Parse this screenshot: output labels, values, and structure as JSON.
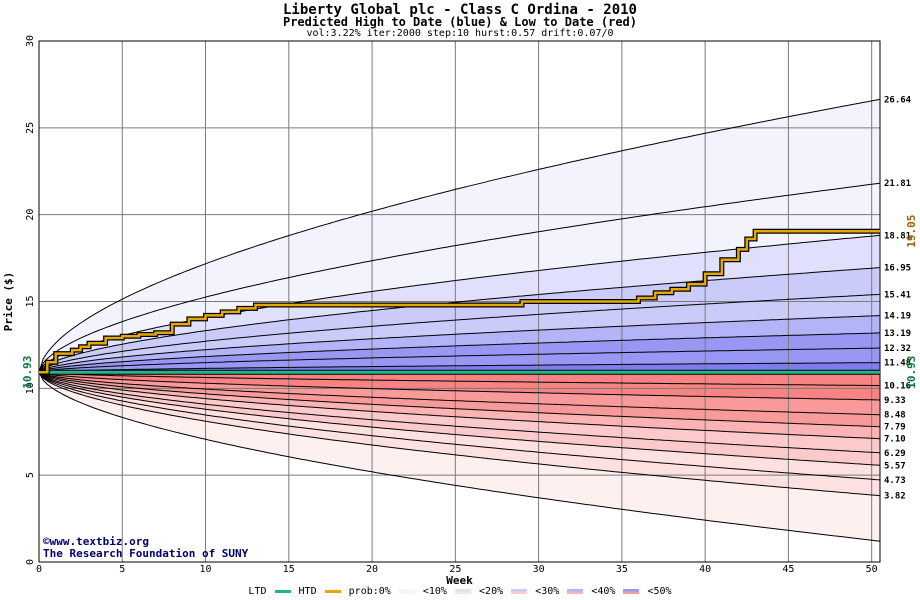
{
  "header": {
    "title": "Liberty Global plc - Class C Ordina - 2010",
    "subtitle": "Predicted High to Date (blue) &  Low to Date (red)",
    "params": "vol:3.22% iter:2000 step:10 hurst:0.57 drift:0.07/0"
  },
  "credits": {
    "line1": "©www.textbiz.org",
    "line2": "The Research Foundation of SUNY"
  },
  "legend": {
    "ltd": "LTD",
    "htd": "HTD",
    "prob": "prob:0%",
    "bands": [
      "<10%",
      "<20%",
      "<30%",
      "<40%",
      "<50%"
    ]
  },
  "colors": {
    "ltd_line": "#21b58c",
    "htd_line": "#e6a800",
    "htd_label": "#a06000",
    "ltd_label": "#0a7a3a",
    "blue_bands": [
      "#f3f3fe",
      "#e0e0fc",
      "#cbcbfa",
      "#b3b3f8",
      "#9898f4",
      "#7d7df0"
    ],
    "red_bands": [
      "#fff0f0",
      "#fde0e0",
      "#fccaca",
      "#fbb3b3",
      "#f99a9a",
      "#f78383"
    ]
  },
  "chart_data": {
    "type": "area",
    "xlabel": "Week",
    "ylabel": "Price ($)",
    "xlim": [
      0,
      50.5
    ],
    "ylim": [
      0,
      30
    ],
    "xticks": [
      0,
      5,
      10,
      15,
      20,
      25,
      30,
      35,
      40,
      45,
      50
    ],
    "yticks": [
      0,
      5,
      10,
      15,
      20,
      25,
      30
    ],
    "grid": true,
    "start_price": 10.93,
    "start_label": "10.93",
    "end_price_label": "10.93",
    "htd_end_label": "19.05",
    "upper_quantiles": [
      {
        "value": 26.64,
        "label": "26.64",
        "peak": 30
      },
      {
        "value": 21.81,
        "label": "21.81"
      },
      {
        "value": 18.81,
        "label": "18.81"
      },
      {
        "value": 16.95,
        "label": "16.95"
      },
      {
        "value": 15.41,
        "label": "15.41"
      },
      {
        "value": 14.19,
        "label": "14.19"
      },
      {
        "value": 13.19,
        "label": "13.19"
      },
      {
        "value": 12.32,
        "label": "12.32"
      },
      {
        "value": 11.48,
        "label": "11.48"
      }
    ],
    "lower_quantiles": [
      {
        "value": 10.16,
        "label": "10.16"
      },
      {
        "value": 9.33,
        "label": "9.33"
      },
      {
        "value": 8.48,
        "label": "8.48"
      },
      {
        "value": 7.79,
        "label": "7.79"
      },
      {
        "value": 7.1,
        "label": "7.10"
      },
      {
        "value": 6.29,
        "label": "6.29"
      },
      {
        "value": 5.57,
        "label": "5.57"
      },
      {
        "value": 4.73,
        "label": "4.73"
      },
      {
        "value": 3.82,
        "label": "3.82"
      },
      {
        "value": 1.2,
        "label": ""
      }
    ],
    "series": [
      {
        "type": "htd",
        "x": [
          0,
          0.5,
          1,
          2,
          2.5,
          3,
          4,
          5,
          6,
          7,
          8,
          9,
          10,
          11,
          12,
          13,
          15,
          20,
          25,
          28,
          29,
          32,
          35,
          36,
          37,
          38,
          39,
          40,
          41,
          42,
          42.5,
          43,
          50.5
        ],
        "values": [
          10.93,
          11.5,
          12.0,
          12.2,
          12.4,
          12.6,
          12.9,
          13.0,
          13.1,
          13.2,
          13.7,
          14.0,
          14.2,
          14.4,
          14.6,
          14.8,
          14.8,
          14.8,
          14.8,
          14.8,
          15.0,
          15.0,
          15.0,
          15.2,
          15.5,
          15.7,
          16.0,
          16.6,
          17.4,
          18.0,
          18.6,
          19.05,
          19.05
        ]
      },
      {
        "type": "ltd",
        "x": [
          0,
          50.5
        ],
        "values": [
          10.93,
          10.93
        ]
      }
    ]
  }
}
